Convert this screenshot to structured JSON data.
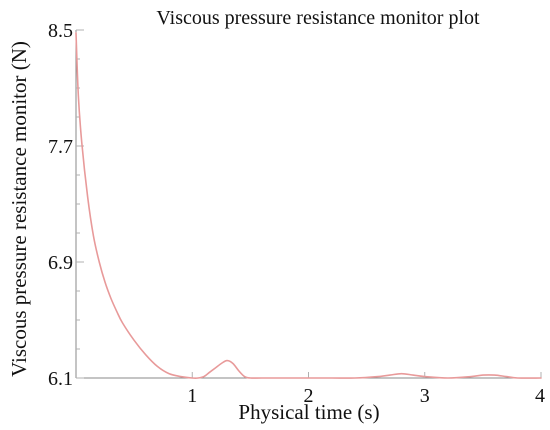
{
  "chart_data": {
    "type": "line",
    "title": "Viscous pressure resistance monitor plot",
    "xlabel": "Physical time (s)",
    "ylabel": "Viscous pressure resistance monitor (N)",
    "xlim": [
      0,
      4
    ],
    "ylim": [
      6.1,
      8.5
    ],
    "xticks": [
      1,
      2,
      3,
      4
    ],
    "xtick_labels": [
      "1",
      "2",
      "3",
      "4"
    ],
    "yticks": [
      8.5,
      7.7,
      6.9,
      6.1
    ],
    "ytick_labels": [
      "8.5",
      "7.7",
      "6.9",
      "6.1"
    ],
    "grid": false,
    "series": [
      {
        "color": "#e89a9a",
        "x": [
          0.0,
          0.02,
          0.05,
          0.1,
          0.15,
          0.2,
          0.25,
          0.3,
          0.35,
          0.4,
          0.5,
          0.6,
          0.7,
          0.8,
          0.9,
          1.0,
          1.05,
          1.1,
          1.15,
          1.2,
          1.25,
          1.3,
          1.35,
          1.4,
          1.45,
          1.5,
          1.6,
          1.8,
          2.0,
          2.2,
          2.4,
          2.6,
          2.7,
          2.8,
          2.9,
          3.0,
          3.2,
          3.4,
          3.5,
          3.6,
          3.7,
          3.8,
          4.0
        ],
        "y": [
          8.48,
          8.05,
          7.72,
          7.35,
          7.08,
          6.9,
          6.76,
          6.65,
          6.56,
          6.48,
          6.36,
          6.26,
          6.18,
          6.13,
          6.11,
          6.1,
          6.1,
          6.11,
          6.14,
          6.17,
          6.2,
          6.22,
          6.2,
          6.15,
          6.11,
          6.1,
          6.1,
          6.1,
          6.1,
          6.1,
          6.1,
          6.11,
          6.12,
          6.13,
          6.12,
          6.11,
          6.1,
          6.11,
          6.12,
          6.12,
          6.11,
          6.1,
          6.1
        ]
      }
    ]
  }
}
